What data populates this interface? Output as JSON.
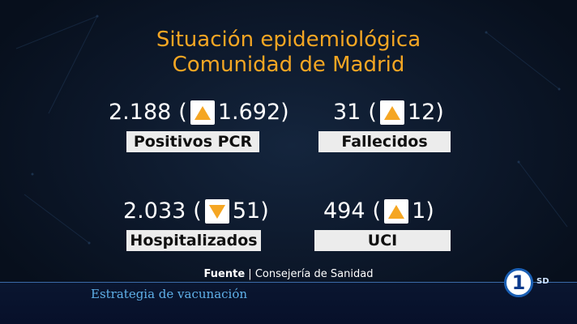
{
  "title": {
    "line1": "Situación epidemiológica",
    "line2": "Comunidad de Madrid"
  },
  "stats": [
    {
      "value": "2.188",
      "open": "(",
      "change": "1.692",
      "close": ")",
      "direction": "up",
      "label": "Positivos PCR"
    },
    {
      "value": "31",
      "open": "(",
      "change": "12",
      "close": ")",
      "direction": "up",
      "label": "Fallecidos"
    },
    {
      "value": "2.033",
      "open": "(",
      "change": "51",
      "close": ")",
      "direction": "down",
      "label": "Hospitalizados"
    },
    {
      "value": "494",
      "open": "(",
      "change": "1",
      "close": ")",
      "direction": "up",
      "label": "UCI"
    }
  ],
  "source": {
    "prefix": "Fuente",
    "separator": "|",
    "name": "Consejería de Sanidad"
  },
  "ticker": {
    "text": "Estrategia de vacunación"
  },
  "channel": {
    "logo": "1",
    "quality": "SD"
  },
  "colors": {
    "accent": "#f5a623",
    "background": "#0a1526",
    "ticker_text": "#5fb0e8"
  }
}
